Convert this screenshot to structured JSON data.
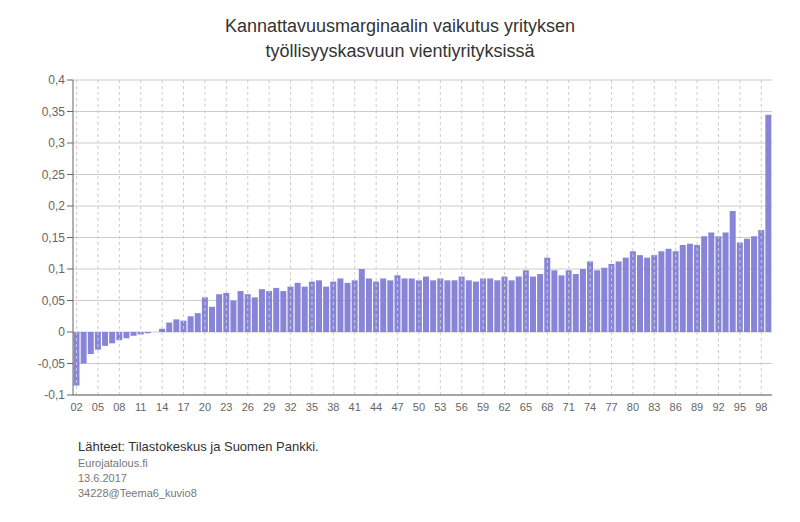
{
  "chart_data": {
    "type": "bar",
    "title": "Kannattavuusmarginaalin vaikutus yrityksen\ntyöllisyyskasvuun vientiyrityksissä",
    "categories": [
      "02",
      null,
      null,
      "05",
      null,
      null,
      "08",
      null,
      null,
      "11",
      null,
      null,
      "14",
      null,
      null,
      "17",
      null,
      null,
      "20",
      null,
      null,
      "23",
      null,
      null,
      "26",
      null,
      null,
      "29",
      null,
      null,
      "32",
      null,
      null,
      "35",
      null,
      null,
      "38",
      null,
      null,
      "41",
      null,
      null,
      "44",
      null,
      null,
      "47",
      null,
      null,
      "50",
      null,
      null,
      "53",
      null,
      null,
      "56",
      null,
      null,
      "59",
      null,
      null,
      "62",
      null,
      null,
      "65",
      null,
      null,
      "68",
      null,
      null,
      "71",
      null,
      null,
      "74",
      null,
      null,
      "77",
      null,
      null,
      "80",
      null,
      null,
      "83",
      null,
      null,
      "86",
      null,
      null,
      "89",
      null,
      null,
      "92",
      null,
      null,
      "95",
      null,
      null,
      "98",
      null
    ],
    "values": [
      -0.085,
      -0.05,
      -0.035,
      -0.028,
      -0.022,
      -0.018,
      -0.013,
      -0.01,
      -0.006,
      -0.004,
      -0.002,
      0.0,
      0.005,
      0.015,
      0.02,
      0.018,
      0.025,
      0.03,
      0.055,
      0.04,
      0.06,
      0.062,
      0.05,
      0.065,
      0.06,
      0.055,
      0.068,
      0.065,
      0.07,
      0.065,
      0.072,
      0.078,
      0.072,
      0.08,
      0.082,
      0.072,
      0.08,
      0.085,
      0.078,
      0.082,
      0.1,
      0.085,
      0.08,
      0.085,
      0.082,
      0.09,
      0.085,
      0.085,
      0.082,
      0.088,
      0.082,
      0.085,
      0.082,
      0.082,
      0.088,
      0.082,
      0.08,
      0.085,
      0.085,
      0.082,
      0.088,
      0.082,
      0.088,
      0.098,
      0.088,
      0.092,
      0.118,
      0.098,
      0.09,
      0.098,
      0.092,
      0.1,
      0.112,
      0.098,
      0.102,
      0.108,
      0.112,
      0.118,
      0.128,
      0.122,
      0.118,
      0.122,
      0.128,
      0.132,
      0.128,
      0.138,
      0.14,
      0.138,
      0.152,
      0.158,
      0.152,
      0.158,
      0.192,
      0.142,
      0.148,
      0.152,
      0.162,
      0.345
    ],
    "color": "#8884d8",
    "ylim": [
      -0.1,
      0.4
    ],
    "yticks": [
      {
        "value": -0.1,
        "label": "-0,1"
      },
      {
        "value": -0.05,
        "label": "-0,05"
      },
      0,
      {
        "value": 0.05,
        "label": "0,05"
      },
      {
        "value": 0.1,
        "label": "0,1"
      },
      {
        "value": 0.15,
        "label": "0,15"
      },
      {
        "value": 0.2,
        "label": "0,2"
      },
      {
        "value": 0.25,
        "label": "0,25"
      },
      {
        "value": 0.3,
        "label": "0,3"
      },
      {
        "value": 0.35,
        "label": "0,35"
      },
      {
        "value": 0.4,
        "label": "0,4"
      }
    ],
    "grid": true,
    "annotations": [
      "Lähteet: Tilastokeskus ja Suomen Pankki.",
      "Eurojatalous.fi",
      "13.6.2017",
      "34228@Teema6_kuvio8"
    ]
  }
}
